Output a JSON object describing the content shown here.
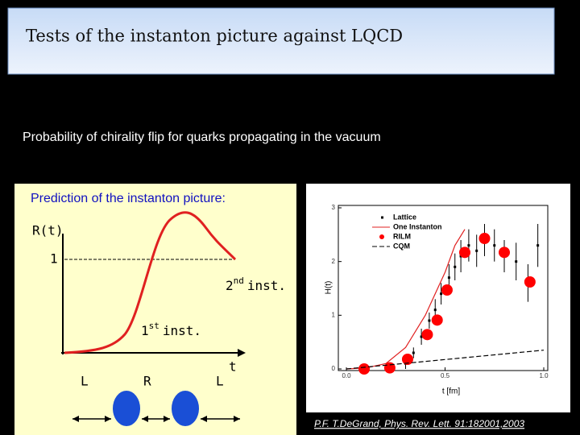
{
  "header": {
    "title": "Tests of the instanton picture against LQCD"
  },
  "subtitle": "Probability of chirality flip for quarks propagating in the vacuum",
  "left_panel": {
    "heading": "Prediction of the instanton picture:",
    "y_label": "R(t)",
    "one": "1",
    "second": {
      "number": "2",
      "suffix": "nd",
      "word": "inst."
    },
    "first": {
      "number": "1",
      "suffix": "st",
      "word": "inst."
    },
    "x_label": "t",
    "chiralities": [
      "L",
      "R",
      "L"
    ]
  },
  "chart_data": {
    "type": "scatter",
    "x_label": "t  [fm]",
    "y_label": "H(t)",
    "xlim": [
      0,
      1
    ],
    "ylim": [
      0,
      3
    ],
    "xticks": [
      {
        "value": 0,
        "label": "0.0"
      },
      0.5,
      {
        "value": 1,
        "label": "1.0"
      }
    ],
    "yticks": [
      0,
      1,
      2,
      3
    ],
    "series": [
      {
        "name": "Lattice",
        "color": "#000000",
        "marker": "errorbar",
        "x": [
          0.3,
          0.34,
          0.38,
          0.42,
          0.45,
          0.48,
          0.52,
          0.55,
          0.58,
          0.62,
          0.66,
          0.7,
          0.75,
          0.8,
          0.86,
          0.92,
          0.97
        ],
        "values": [
          0.1,
          0.3,
          0.6,
          0.9,
          1.1,
          1.4,
          1.7,
          1.9,
          2.1,
          2.3,
          2.2,
          2.4,
          2.3,
          2.1,
          2.0,
          1.6,
          2.3
        ],
        "errors": [
          0.1,
          0.1,
          0.15,
          0.15,
          0.2,
          0.2,
          0.25,
          0.25,
          0.3,
          0.3,
          0.3,
          0.3,
          0.3,
          0.3,
          0.35,
          0.35,
          0.4
        ]
      },
      {
        "name": "One Instanton",
        "color": "#e02020",
        "marker": "line",
        "x": [
          0,
          0.1,
          0.2,
          0.3,
          0.4,
          0.5,
          0.55,
          0.6
        ],
        "values": [
          0,
          0.02,
          0.1,
          0.4,
          1.0,
          1.8,
          2.3,
          2.6
        ]
      },
      {
        "name": "RILM",
        "color": "#ff0000",
        "marker": "dot",
        "x": [
          0.09,
          0.22,
          0.31,
          0.41,
          0.46,
          0.51,
          0.6,
          0.7,
          0.8,
          0.93
        ],
        "values": [
          0,
          0.02,
          0.18,
          0.64,
          0.91,
          1.47,
          2.17,
          2.43,
          2.17,
          1.62
        ]
      },
      {
        "name": "CQM",
        "color": "#000000",
        "marker": "dashed",
        "x": [
          0,
          1
        ],
        "values": [
          0,
          0.35
        ]
      }
    ]
  },
  "citation": "P.F. T.DeGrand, Phys. Rev. Lett. 91:182001,2003"
}
